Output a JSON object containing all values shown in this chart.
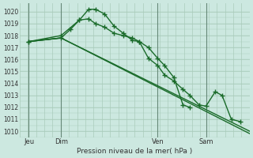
{
  "background_color": "#cce8e0",
  "grid_color": "#aaccbb",
  "line_color": "#1a6b2a",
  "title": "Pression niveau de la mer( hPa )",
  "ylabel_ticks": [
    1010,
    1011,
    1012,
    1013,
    1014,
    1015,
    1016,
    1017,
    1018,
    1019,
    1020
  ],
  "ylim": [
    1009.5,
    1020.7
  ],
  "xlim": [
    0.0,
    1.0
  ],
  "x_tick_labels": [
    "Jeu",
    "Dim",
    "Ven",
    "Sam"
  ],
  "x_tick_positions": [
    0.04,
    0.18,
    0.6,
    0.81
  ],
  "day_vlines": [
    0.04,
    0.18,
    0.6,
    0.81
  ],
  "series": [
    {
      "x": [
        0.04,
        0.18,
        0.26,
        0.3,
        0.33,
        0.37,
        0.41,
        0.45,
        0.49,
        0.52,
        0.56,
        0.6,
        0.63,
        0.67,
        0.71,
        0.74,
        0.78,
        0.81,
        0.85,
        0.88,
        0.92,
        0.96
      ],
      "y": [
        1017.5,
        1018.0,
        1019.3,
        1020.2,
        1020.2,
        1019.8,
        1018.8,
        1018.2,
        1017.6,
        1017.5,
        1016.1,
        1015.5,
        1014.7,
        1014.2,
        1013.5,
        1013.0,
        1012.2,
        1012.1,
        1013.3,
        1013.0,
        1011.0,
        1010.8
      ],
      "marker": "+"
    },
    {
      "x": [
        0.04,
        0.18,
        0.22,
        0.26,
        0.3,
        0.33,
        0.37,
        0.41,
        0.45,
        0.49,
        0.52,
        0.56,
        0.6,
        0.63,
        0.67,
        0.71,
        0.74
      ],
      "y": [
        1017.5,
        1017.8,
        1018.5,
        1019.3,
        1019.4,
        1019.0,
        1018.7,
        1018.2,
        1018.0,
        1017.8,
        1017.5,
        1017.0,
        1016.1,
        1015.5,
        1014.5,
        1012.2,
        1012.0
      ],
      "marker": "+"
    },
    {
      "x": [
        0.04,
        0.18,
        1.0
      ],
      "y": [
        1017.5,
        1017.8,
        1010.0
      ],
      "marker": null
    },
    {
      "x": [
        0.04,
        0.18,
        1.0
      ],
      "y": [
        1017.5,
        1017.8,
        1009.8
      ],
      "marker": null
    }
  ]
}
